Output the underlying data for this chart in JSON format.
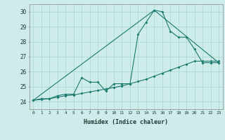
{
  "xlabel": "Humidex (Indice chaleur)",
  "bg_color": "#ceecea",
  "grid_color": "#aed8d4",
  "line_color": "#1a7a6e",
  "ylim": [
    23.5,
    30.5
  ],
  "xlim": [
    -0.5,
    23.5
  ],
  "yticks": [
    24,
    25,
    26,
    27,
    28,
    29,
    30
  ],
  "xticks": [
    0,
    1,
    2,
    3,
    4,
    5,
    6,
    7,
    8,
    9,
    10,
    11,
    12,
    13,
    14,
    15,
    16,
    17,
    18,
    19,
    20,
    21,
    22,
    23
  ],
  "line1_x": [
    0,
    1,
    2,
    3,
    4,
    5,
    6,
    7,
    8,
    9,
    10,
    11,
    12,
    13,
    14,
    15,
    16,
    17,
    18,
    19,
    20,
    21,
    22,
    23
  ],
  "line1_y": [
    24.1,
    24.2,
    24.2,
    24.4,
    24.5,
    24.5,
    25.6,
    25.3,
    25.3,
    24.7,
    25.2,
    25.2,
    25.2,
    28.5,
    29.3,
    30.1,
    30.0,
    28.7,
    28.3,
    28.3,
    27.5,
    26.6,
    26.6,
    26.6
  ],
  "line2_x": [
    0,
    1,
    2,
    3,
    4,
    5,
    6,
    7,
    8,
    9,
    10,
    11,
    12,
    13,
    14,
    15,
    16,
    17,
    18,
    19,
    20,
    21,
    22,
    23
  ],
  "line2_y": [
    24.1,
    24.15,
    24.2,
    24.3,
    24.4,
    24.45,
    24.55,
    24.65,
    24.75,
    24.85,
    24.95,
    25.05,
    25.2,
    25.35,
    25.5,
    25.7,
    25.9,
    26.1,
    26.3,
    26.5,
    26.7,
    26.7,
    26.7,
    26.7
  ],
  "line3_x": [
    0,
    15,
    23
  ],
  "line3_y": [
    24.1,
    30.1,
    26.6
  ]
}
